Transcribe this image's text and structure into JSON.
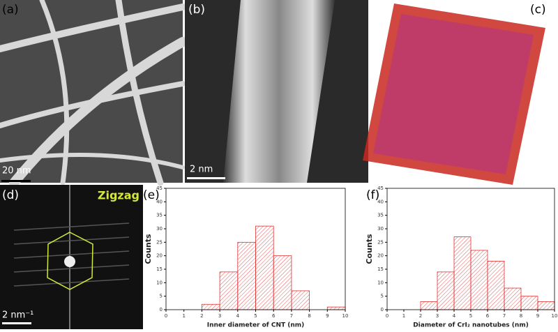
{
  "figure": {
    "panel_labels": [
      "(a)",
      "(b)",
      "(c)",
      "(d)",
      "(e)",
      "(f)"
    ],
    "scale_bars": [
      "20 nm",
      "2 nm",
      "2 nm⁻¹"
    ],
    "annotation": "Zigzag"
  },
  "chart_data": [
    {
      "type": "histogram",
      "bins": [
        0,
        1,
        2,
        3,
        4,
        5,
        6,
        7,
        8,
        9,
        10
      ],
      "values": [
        0,
        0,
        2,
        14,
        25,
        31,
        20,
        7,
        0,
        1
      ],
      "color": "#e03030",
      "xlabel": "Inner diameter of CNT (nm)",
      "ylabel": "Counts",
      "xlim": [
        0,
        10
      ],
      "ylim": [
        0,
        45
      ],
      "xticks": [
        0,
        1,
        2,
        3,
        4,
        5,
        6,
        7,
        8,
        9,
        10
      ],
      "yticks": [
        0,
        5,
        10,
        15,
        20,
        25,
        30,
        35,
        40,
        45
      ]
    },
    {
      "type": "histogram",
      "bins": [
        0,
        1,
        2,
        3,
        4,
        5,
        6,
        7,
        8,
        9,
        10
      ],
      "values": [
        0,
        0,
        3,
        14,
        27,
        22,
        18,
        8,
        5,
        3
      ],
      "color": "#e03030",
      "xlabel": "Diameter of CrI₂ nanotubes (nm)",
      "ylabel": "Counts",
      "xlim": [
        0,
        10
      ],
      "ylim": [
        0,
        45
      ],
      "xticks": [
        0,
        1,
        2,
        3,
        4,
        5,
        6,
        7,
        8,
        9,
        10
      ],
      "yticks": [
        0,
        5,
        10,
        15,
        20,
        25,
        30,
        35,
        40,
        45
      ]
    }
  ]
}
